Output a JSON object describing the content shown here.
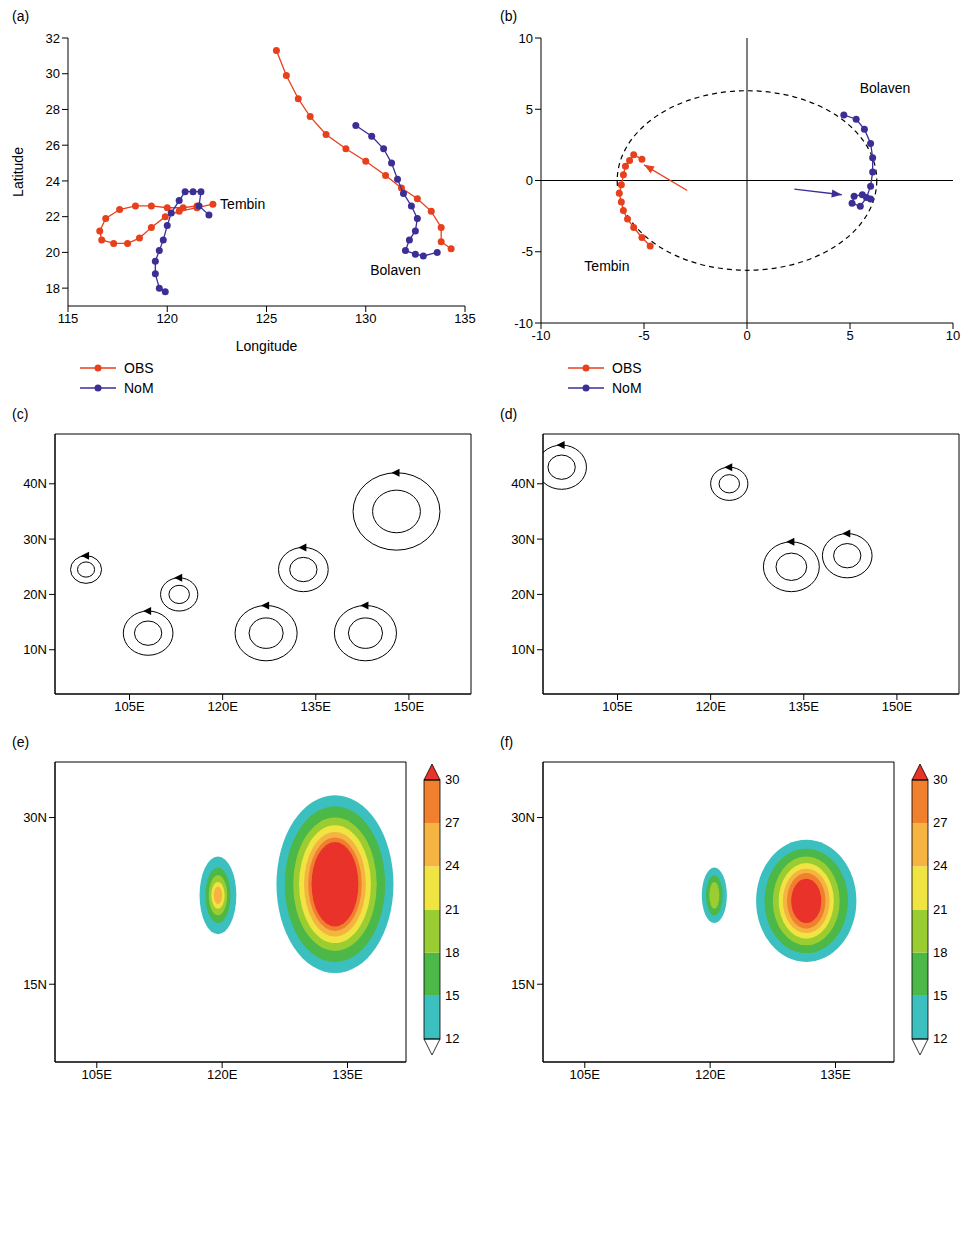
{
  "chart_data": [
    {
      "type": "line",
      "label": "(a)",
      "x_label": "Longitude",
      "y_label": "Latitude",
      "xlim": [
        115,
        135
      ],
      "xticks": [
        115,
        120,
        125,
        130,
        135
      ],
      "ylim": [
        17,
        32
      ],
      "yticks": [
        18,
        20,
        22,
        24,
        26,
        28,
        30,
        32
      ],
      "marker": "circle",
      "legend": "bottom",
      "series": [
        {
          "name": "OBS",
          "color": "#e8401c",
          "tracks": [
            {
              "x": [
                122.3,
                121.5,
                120.6,
                119.9,
                119.2,
                118.6,
                118.0,
                117.3,
                116.7,
                116.6,
                116.9,
                117.6,
                118.4,
                119.2,
                120.0,
                120.8,
                121.5
              ],
              "y": [
                22.7,
                22.5,
                22.3,
                22.0,
                21.4,
                20.8,
                20.5,
                20.5,
                20.7,
                21.2,
                21.9,
                22.4,
                22.6,
                22.6,
                22.5,
                22.5,
                22.6
              ]
            },
            {
              "x": [
                134.3,
                133.8,
                133.8,
                133.3,
                132.6,
                131.8,
                131.0,
                130.0,
                129.0,
                128.0,
                127.2,
                126.6,
                126.0,
                125.5
              ],
              "y": [
                20.2,
                20.6,
                21.4,
                22.3,
                23.0,
                23.6,
                24.3,
                25.1,
                25.8,
                26.6,
                27.6,
                28.6,
                29.9,
                31.3
              ]
            }
          ]
        },
        {
          "name": "NoM",
          "color": "#3b2f96",
          "tracks": [
            {
              "x": [
                122.1,
                121.6,
                121.7,
                121.3,
                120.9,
                120.6,
                120.2,
                120.0,
                119.8,
                119.6,
                119.4,
                119.4,
                119.6,
                119.9
              ],
              "y": [
                22.1,
                22.6,
                23.4,
                23.4,
                23.4,
                22.9,
                22.2,
                21.5,
                20.7,
                20.1,
                19.5,
                18.8,
                18.0,
                17.8
              ]
            },
            {
              "x": [
                129.5,
                130.3,
                130.9,
                131.3,
                131.6,
                131.9,
                132.3,
                132.6,
                132.5,
                132.2,
                132.0,
                132.5,
                132.9,
                133.6
              ],
              "y": [
                27.1,
                26.5,
                25.8,
                25.0,
                24.1,
                23.3,
                22.6,
                21.9,
                21.2,
                20.7,
                20.1,
                19.9,
                19.8,
                20.0
              ]
            }
          ]
        }
      ],
      "annotations": [
        {
          "text": "Tembin",
          "x": 123.8,
          "y": 22.7
        },
        {
          "text": "Bolaven",
          "x": 131.5,
          "y": 19.0
        }
      ]
    },
    {
      "type": "scatter",
      "label": "(b)",
      "xlim": [
        -10,
        10
      ],
      "xticks": [
        -10,
        -5,
        0,
        5,
        10
      ],
      "ylim": [
        -10,
        10
      ],
      "yticks": [
        -10,
        -5,
        0,
        5,
        10
      ],
      "marker": "circle",
      "legend": "bottom",
      "circle_radius": 6.3,
      "series": [
        {
          "name": "OBS",
          "color": "#e8401c",
          "tracks": [
            {
              "x": [
                -5.1,
                -5.5,
                -5.7,
                -5.9,
                -6.0,
                -6.1,
                -6.2,
                -6.1,
                -6.0,
                -5.8,
                -5.5,
                -5.1,
                -4.7
              ],
              "y": [
                1.5,
                1.8,
                1.4,
                1.0,
                0.4,
                -0.3,
                -0.9,
                -1.5,
                -2.1,
                -2.7,
                -3.3,
                -4.0,
                -4.6
              ]
            }
          ]
        },
        {
          "name": "NoM",
          "color": "#3b2f96",
          "tracks": [
            {
              "x": [
                4.7,
                5.3,
                5.7,
                6.0,
                6.1,
                6.1,
                6.0,
                5.8,
                5.5,
                5.1,
                5.2,
                5.6,
                6.0
              ],
              "y": [
                4.6,
                4.3,
                3.6,
                2.6,
                1.6,
                0.6,
                -0.4,
                -1.2,
                -1.8,
                -1.6,
                -1.1,
                -1.0,
                -1.3
              ]
            }
          ]
        }
      ],
      "arrows": [
        {
          "color": "#e8401c",
          "from": [
            -2.9,
            -0.7
          ],
          "to": [
            -5.0,
            1.1
          ]
        },
        {
          "color": "#3b2f96",
          "from": [
            2.3,
            -0.6
          ],
          "to": [
            4.6,
            -1.0
          ]
        }
      ],
      "annotations": [
        {
          "text": "Tembin",
          "x": -6.8,
          "y": -6.0
        },
        {
          "text": "Bolaven",
          "x": 6.7,
          "y": 6.5
        }
      ]
    },
    {
      "type": "streamline_map",
      "label": "(c)",
      "xlim": [
        93,
        160
      ],
      "xticks": [
        {
          "value": 105,
          "label": "105E"
        },
        {
          "value": 120,
          "label": "120E"
        },
        {
          "value": 135,
          "label": "135E"
        },
        {
          "value": 150,
          "label": "150E"
        }
      ],
      "ylim": [
        2,
        49
      ],
      "yticks": [
        {
          "value": 10,
          "label": "10N"
        },
        {
          "value": 20,
          "label": "20N"
        },
        {
          "value": 30,
          "label": "30N"
        },
        {
          "value": 40,
          "label": "40N"
        }
      ],
      "vortices": [
        {
          "lon": 133,
          "lat": 24.5,
          "r": 4
        },
        {
          "lon": 148,
          "lat": 35,
          "r": 7
        },
        {
          "lon": 98,
          "lat": 24.5,
          "r": 2.5
        },
        {
          "lon": 113,
          "lat": 20,
          "r": 3
        },
        {
          "lon": 108,
          "lat": 13,
          "r": 4
        },
        {
          "lon": 127,
          "lat": 13,
          "r": 5
        },
        {
          "lon": 143,
          "lat": 13,
          "r": 5
        }
      ]
    },
    {
      "type": "streamline_map",
      "label": "(d)",
      "xlim": [
        93,
        160
      ],
      "xticks": [
        {
          "value": 105,
          "label": "105E"
        },
        {
          "value": 120,
          "label": "120E"
        },
        {
          "value": 135,
          "label": "135E"
        },
        {
          "value": 150,
          "label": "150E"
        }
      ],
      "ylim": [
        2,
        49
      ],
      "yticks": [
        {
          "value": 10,
          "label": "10N"
        },
        {
          "value": 20,
          "label": "20N"
        },
        {
          "value": 30,
          "label": "30N"
        },
        {
          "value": 40,
          "label": "40N"
        }
      ],
      "vortices": [
        {
          "lon": 133,
          "lat": 25,
          "r": 4.5
        },
        {
          "lon": 96,
          "lat": 43,
          "r": 4
        },
        {
          "lon": 123,
          "lat": 40,
          "r": 3
        },
        {
          "lon": 142,
          "lat": 27,
          "r": 4
        }
      ]
    },
    {
      "type": "contour_map",
      "label": "(e)",
      "xlim": [
        100,
        142
      ],
      "xticks": [
        {
          "value": 105,
          "label": "105E"
        },
        {
          "value": 120,
          "label": "120E"
        },
        {
          "value": 135,
          "label": "135E"
        }
      ],
      "ylim": [
        8,
        35
      ],
      "yticks": [
        {
          "value": 15,
          "label": "15N"
        },
        {
          "value": 30,
          "label": "30N"
        }
      ],
      "colorbar": {
        "ticks": [
          12,
          15,
          18,
          21,
          24,
          27,
          30
        ],
        "colors": [
          "#3cbfbf",
          "#4cb848",
          "#9acd32",
          "#f0e442",
          "#f5b342",
          "#f07f2e",
          "#e8322a"
        ]
      },
      "storms": [
        {
          "lon": 133.5,
          "lat": 24,
          "rings": [
            {
              "level": 12,
              "rx": 7,
              "ry": 8
            },
            {
              "level": 15,
              "rx": 6,
              "ry": 7
            },
            {
              "level": 18,
              "rx": 5,
              "ry": 6
            },
            {
              "level": 21,
              "rx": 4.3,
              "ry": 5.3
            },
            {
              "level": 24,
              "rx": 3.7,
              "ry": 4.7
            },
            {
              "level": 27,
              "rx": 3.2,
              "ry": 4.2
            },
            {
              "level": 30,
              "rx": 2.8,
              "ry": 3.8
            }
          ]
        },
        {
          "lon": 119.5,
          "lat": 23,
          "rings": [
            {
              "level": 12,
              "rx": 2.2,
              "ry": 3.5
            },
            {
              "level": 15,
              "rx": 1.5,
              "ry": 2.5
            },
            {
              "level": 18,
              "rx": 1.1,
              "ry": 1.8
            },
            {
              "level": 21,
              "rx": 0.8,
              "ry": 1.2
            },
            {
              "level": 24,
              "rx": 0.5,
              "ry": 0.8
            }
          ]
        }
      ]
    },
    {
      "type": "contour_map",
      "label": "(f)",
      "xlim": [
        100,
        142
      ],
      "xticks": [
        {
          "value": 105,
          "label": "105E"
        },
        {
          "value": 120,
          "label": "120E"
        },
        {
          "value": 135,
          "label": "135E"
        }
      ],
      "ylim": [
        8,
        35
      ],
      "yticks": [
        {
          "value": 15,
          "label": "15N"
        },
        {
          "value": 30,
          "label": "30N"
        }
      ],
      "colorbar": {
        "ticks": [
          12,
          15,
          18,
          21,
          24,
          27,
          30
        ],
        "colors": [
          "#3cbfbf",
          "#4cb848",
          "#9acd32",
          "#f0e442",
          "#f5b342",
          "#f07f2e",
          "#e8322a"
        ]
      },
      "storms": [
        {
          "lon": 131.5,
          "lat": 22.5,
          "rings": [
            {
              "level": 12,
              "rx": 6,
              "ry": 5.5
            },
            {
              "level": 15,
              "rx": 5,
              "ry": 4.7
            },
            {
              "level": 18,
              "rx": 4,
              "ry": 4
            },
            {
              "level": 21,
              "rx": 3.3,
              "ry": 3.4
            },
            {
              "level": 24,
              "rx": 2.8,
              "ry": 2.9
            },
            {
              "level": 27,
              "rx": 2.3,
              "ry": 2.5
            },
            {
              "level": 30,
              "rx": 1.8,
              "ry": 2
            }
          ]
        },
        {
          "lon": 120.5,
          "lat": 23,
          "rings": [
            {
              "level": 12,
              "rx": 1.5,
              "ry": 2.5
            },
            {
              "level": 15,
              "rx": 1,
              "ry": 1.8
            },
            {
              "level": 18,
              "rx": 0.6,
              "ry": 1.2
            }
          ]
        }
      ]
    }
  ]
}
